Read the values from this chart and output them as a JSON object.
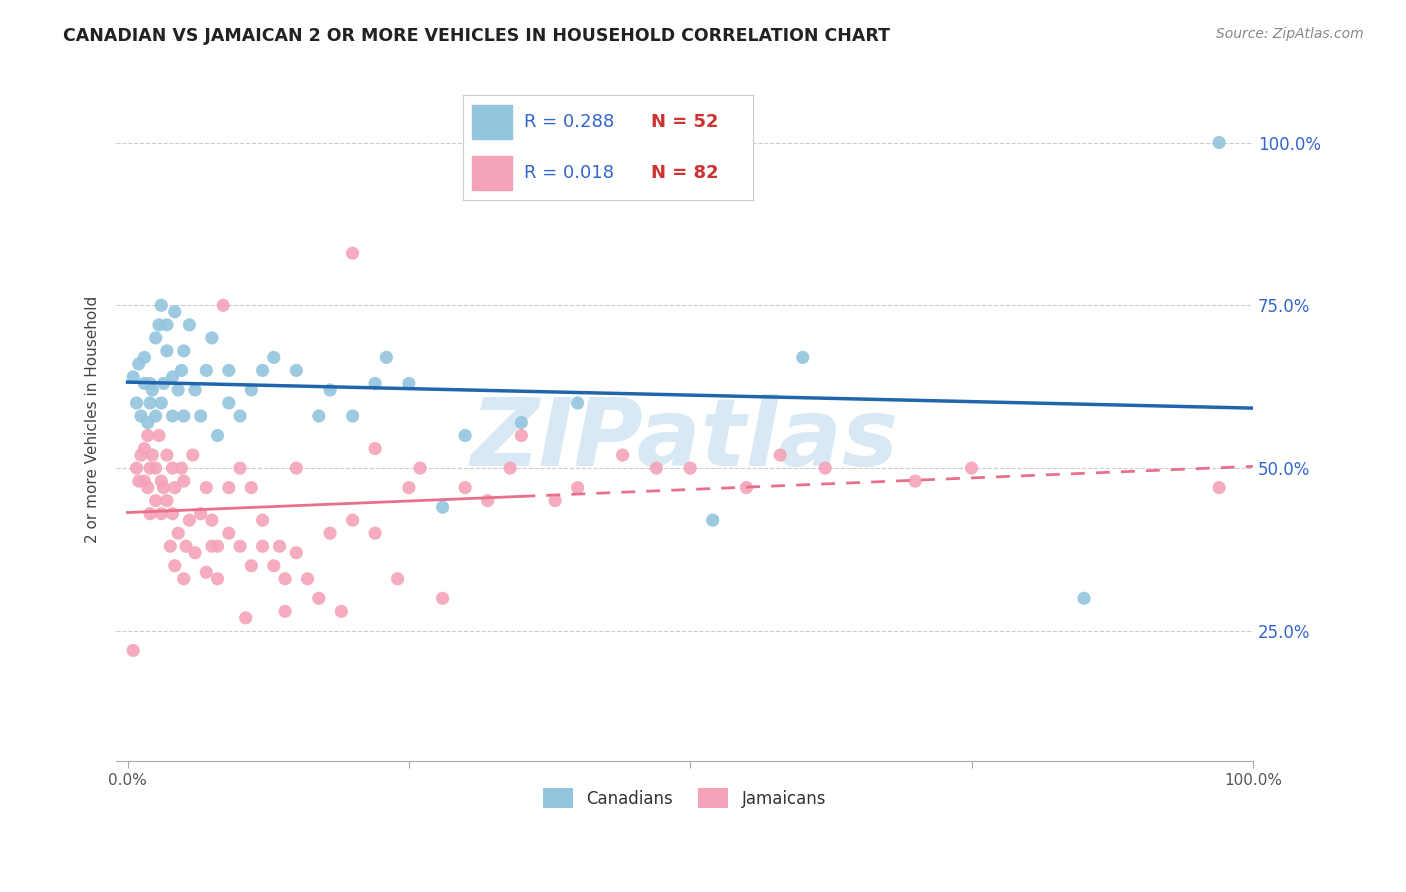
{
  "title": "CANADIAN VS JAMAICAN 2 OR MORE VEHICLES IN HOUSEHOLD CORRELATION CHART",
  "source": "Source: ZipAtlas.com",
  "ylabel": "2 or more Vehicles in Household",
  "ytick_labels": [
    "25.0%",
    "50.0%",
    "75.0%",
    "100.0%"
  ],
  "ytick_values": [
    0.25,
    0.5,
    0.75,
    1.0
  ],
  "canadian_r": 0.288,
  "canadian_n": 52,
  "jamaican_r": 0.018,
  "jamaican_n": 82,
  "canadian_color": "#92c5de",
  "jamaican_color": "#f4a3b8",
  "canadian_line_color": "#2166ac",
  "jamaican_line_color": "#e8708a",
  "watermark": "ZIPatlas",
  "watermark_color": "#d8e8f5",
  "legend_r1": "R = 0.288",
  "legend_n1": "N = 52",
  "legend_r2": "R = 0.018",
  "legend_n2": "N = 82",
  "label_color_r": "#3366cc",
  "label_color_n": "#cc3333",
  "canadian_x": [
    0.005,
    0.008,
    0.01,
    0.012,
    0.015,
    0.015,
    0.018,
    0.02,
    0.02,
    0.022,
    0.025,
    0.025,
    0.028,
    0.03,
    0.03,
    0.032,
    0.035,
    0.035,
    0.04,
    0.04,
    0.042,
    0.045,
    0.048,
    0.05,
    0.05,
    0.055,
    0.06,
    0.065,
    0.07,
    0.075,
    0.08,
    0.09,
    0.09,
    0.1,
    0.11,
    0.12,
    0.13,
    0.15,
    0.17,
    0.18,
    0.2,
    0.22,
    0.23,
    0.25,
    0.28,
    0.3,
    0.35,
    0.4,
    0.52,
    0.6,
    0.85,
    0.97
  ],
  "canadian_y": [
    0.64,
    0.6,
    0.66,
    0.58,
    0.63,
    0.67,
    0.57,
    0.6,
    0.63,
    0.62,
    0.58,
    0.7,
    0.72,
    0.6,
    0.75,
    0.63,
    0.68,
    0.72,
    0.58,
    0.64,
    0.74,
    0.62,
    0.65,
    0.58,
    0.68,
    0.72,
    0.62,
    0.58,
    0.65,
    0.7,
    0.55,
    0.6,
    0.65,
    0.58,
    0.62,
    0.65,
    0.67,
    0.65,
    0.58,
    0.62,
    0.58,
    0.63,
    0.67,
    0.63,
    0.44,
    0.55,
    0.57,
    0.6,
    0.42,
    0.67,
    0.3,
    1.0
  ],
  "jamaican_x": [
    0.005,
    0.008,
    0.01,
    0.012,
    0.015,
    0.015,
    0.018,
    0.018,
    0.02,
    0.02,
    0.022,
    0.025,
    0.025,
    0.028,
    0.03,
    0.03,
    0.032,
    0.035,
    0.035,
    0.038,
    0.04,
    0.04,
    0.042,
    0.042,
    0.045,
    0.048,
    0.05,
    0.05,
    0.052,
    0.055,
    0.058,
    0.06,
    0.065,
    0.07,
    0.07,
    0.075,
    0.075,
    0.08,
    0.08,
    0.085,
    0.09,
    0.09,
    0.1,
    0.1,
    0.105,
    0.11,
    0.11,
    0.12,
    0.12,
    0.13,
    0.135,
    0.14,
    0.14,
    0.15,
    0.15,
    0.16,
    0.17,
    0.18,
    0.19,
    0.2,
    0.2,
    0.22,
    0.22,
    0.24,
    0.25,
    0.26,
    0.28,
    0.3,
    0.32,
    0.34,
    0.35,
    0.38,
    0.4,
    0.44,
    0.47,
    0.5,
    0.55,
    0.58,
    0.62,
    0.7,
    0.75,
    0.97
  ],
  "jamaican_y": [
    0.22,
    0.5,
    0.48,
    0.52,
    0.48,
    0.53,
    0.47,
    0.55,
    0.43,
    0.5,
    0.52,
    0.45,
    0.5,
    0.55,
    0.43,
    0.48,
    0.47,
    0.52,
    0.45,
    0.38,
    0.43,
    0.5,
    0.35,
    0.47,
    0.4,
    0.5,
    0.33,
    0.48,
    0.38,
    0.42,
    0.52,
    0.37,
    0.43,
    0.34,
    0.47,
    0.38,
    0.42,
    0.33,
    0.38,
    0.75,
    0.4,
    0.47,
    0.38,
    0.5,
    0.27,
    0.35,
    0.47,
    0.38,
    0.42,
    0.35,
    0.38,
    0.28,
    0.33,
    0.37,
    0.5,
    0.33,
    0.3,
    0.4,
    0.28,
    0.42,
    0.83,
    0.4,
    0.53,
    0.33,
    0.47,
    0.5,
    0.3,
    0.47,
    0.45,
    0.5,
    0.55,
    0.45,
    0.47,
    0.52,
    0.5,
    0.5,
    0.47,
    0.52,
    0.5,
    0.48,
    0.5,
    0.47
  ]
}
